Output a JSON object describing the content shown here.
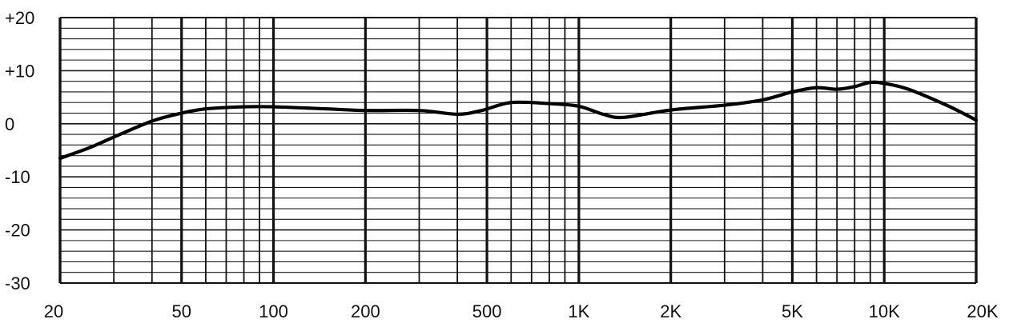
{
  "chart_data": {
    "type": "line",
    "title": "",
    "xlabel": "",
    "ylabel": "",
    "x_scale": "log",
    "xlim": [
      20,
      20000
    ],
    "ylim": [
      -30,
      20
    ],
    "grid": true,
    "x_ticks": [
      {
        "value": 20,
        "label": "20"
      },
      {
        "value": 50,
        "label": "50"
      },
      {
        "value": 100,
        "label": "100"
      },
      {
        "value": 200,
        "label": "200"
      },
      {
        "value": 500,
        "label": "500"
      },
      {
        "value": 1000,
        "label": "1K"
      },
      {
        "value": 2000,
        "label": "2K"
      },
      {
        "value": 5000,
        "label": "5K"
      },
      {
        "value": 10000,
        "label": "10K"
      },
      {
        "value": 20000,
        "label": "20K"
      }
    ],
    "y_ticks": [
      {
        "value": 20,
        "label": "+20"
      },
      {
        "value": 10,
        "label": "+10"
      },
      {
        "value": 0,
        "label": "0"
      },
      {
        "value": -10,
        "label": "-10"
      },
      {
        "value": -20,
        "label": "-20"
      },
      {
        "value": -30,
        "label": "-30"
      }
    ],
    "y_minor_step": 2,
    "series": [
      {
        "name": "",
        "color": "#000000",
        "points": [
          {
            "x": 20,
            "y": -6.5
          },
          {
            "x": 25,
            "y": -4.5
          },
          {
            "x": 30,
            "y": -2.5
          },
          {
            "x": 40,
            "y": 0.5
          },
          {
            "x": 50,
            "y": 2.0
          },
          {
            "x": 60,
            "y": 2.8
          },
          {
            "x": 80,
            "y": 3.2
          },
          {
            "x": 100,
            "y": 3.2
          },
          {
            "x": 150,
            "y": 2.8
          },
          {
            "x": 200,
            "y": 2.5
          },
          {
            "x": 300,
            "y": 2.5
          },
          {
            "x": 400,
            "y": 1.8
          },
          {
            "x": 480,
            "y": 2.5
          },
          {
            "x": 600,
            "y": 4.0
          },
          {
            "x": 800,
            "y": 3.8
          },
          {
            "x": 1000,
            "y": 3.3
          },
          {
            "x": 1200,
            "y": 1.8
          },
          {
            "x": 1400,
            "y": 1.2
          },
          {
            "x": 2000,
            "y": 2.6
          },
          {
            "x": 3000,
            "y": 3.5
          },
          {
            "x": 4000,
            "y": 4.5
          },
          {
            "x": 5000,
            "y": 6.0
          },
          {
            "x": 6000,
            "y": 6.8
          },
          {
            "x": 7000,
            "y": 6.5
          },
          {
            "x": 8000,
            "y": 7.0
          },
          {
            "x": 9000,
            "y": 7.8
          },
          {
            "x": 10000,
            "y": 7.6
          },
          {
            "x": 12000,
            "y": 6.5
          },
          {
            "x": 16000,
            "y": 3.5
          },
          {
            "x": 20000,
            "y": 0.7
          }
        ]
      }
    ]
  }
}
